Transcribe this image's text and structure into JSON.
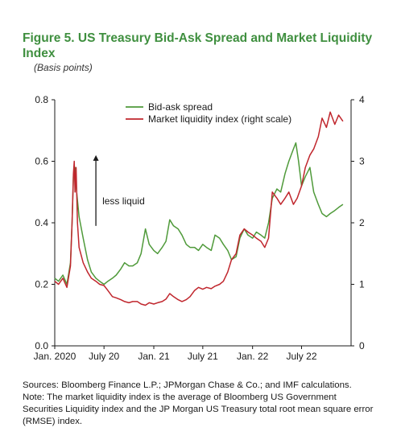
{
  "chart_data": {
    "type": "line",
    "title": "Figure 5. US Treasury Bid-Ask Spread and Market Liquidity Index",
    "subtitle": "(Basis points)",
    "x_range": [
      "2020-01-01",
      "2022-12-31"
    ],
    "x_ticks": [
      {
        "date": "2020-01-01",
        "label": "Jan. 2020"
      },
      {
        "date": "2020-07-01",
        "label": "July 20"
      },
      {
        "date": "2021-01-01",
        "label": "Jan. 21"
      },
      {
        "date": "2021-07-01",
        "label": "July 21"
      },
      {
        "date": "2022-01-01",
        "label": "Jan. 22"
      },
      {
        "date": "2022-07-01",
        "label": "July 22"
      }
    ],
    "y_left": {
      "range": [
        0,
        0.8
      ],
      "ticks": [
        {
          "value": 0,
          "label": "0.0"
        },
        {
          "value": 0.2,
          "label": "0.2"
        },
        {
          "value": 0.4,
          "label": "0.4"
        },
        {
          "value": 0.6,
          "label": "0.6"
        },
        {
          "value": 0.8,
          "label": "0.8"
        }
      ]
    },
    "y_right": {
      "range": [
        0,
        4
      ],
      "ticks": [
        {
          "value": 0,
          "label": "0"
        },
        {
          "value": 1,
          "label": "1"
        },
        {
          "value": 2,
          "label": "2"
        },
        {
          "value": 3,
          "label": "3"
        },
        {
          "value": 4,
          "label": "4"
        }
      ]
    },
    "grid": false,
    "legend_position": "top-center",
    "annotation": {
      "text": "less liquid",
      "date": "2020-06-01",
      "value": 0.47
    },
    "series": [
      {
        "name": "Bid-ask spread",
        "axis": "left",
        "color": "#4f9a3a",
        "points": [
          [
            "2020-01-01",
            0.22
          ],
          [
            "2020-01-15",
            0.21
          ],
          [
            "2020-01-31",
            0.23
          ],
          [
            "2020-02-15",
            0.2
          ],
          [
            "2020-02-28",
            0.27
          ],
          [
            "2020-03-05",
            0.4
          ],
          [
            "2020-03-10",
            0.55
          ],
          [
            "2020-03-16",
            0.58
          ],
          [
            "2020-03-22",
            0.5
          ],
          [
            "2020-03-31",
            0.42
          ],
          [
            "2020-04-15",
            0.35
          ],
          [
            "2020-05-01",
            0.28
          ],
          [
            "2020-05-15",
            0.24
          ],
          [
            "2020-06-01",
            0.22
          ],
          [
            "2020-06-15",
            0.21
          ],
          [
            "2020-07-01",
            0.2
          ],
          [
            "2020-07-15",
            0.21
          ],
          [
            "2020-08-01",
            0.22
          ],
          [
            "2020-08-15",
            0.23
          ],
          [
            "2020-09-01",
            0.25
          ],
          [
            "2020-09-15",
            0.27
          ],
          [
            "2020-10-01",
            0.26
          ],
          [
            "2020-10-15",
            0.26
          ],
          [
            "2020-11-01",
            0.27
          ],
          [
            "2020-11-15",
            0.3
          ],
          [
            "2020-12-01",
            0.38
          ],
          [
            "2020-12-15",
            0.33
          ],
          [
            "2021-01-01",
            0.31
          ],
          [
            "2021-01-15",
            0.3
          ],
          [
            "2021-02-01",
            0.32
          ],
          [
            "2021-02-15",
            0.34
          ],
          [
            "2021-03-01",
            0.41
          ],
          [
            "2021-03-15",
            0.39
          ],
          [
            "2021-04-01",
            0.38
          ],
          [
            "2021-04-15",
            0.36
          ],
          [
            "2021-05-01",
            0.33
          ],
          [
            "2021-05-15",
            0.32
          ],
          [
            "2021-06-01",
            0.32
          ],
          [
            "2021-06-15",
            0.31
          ],
          [
            "2021-07-01",
            0.33
          ],
          [
            "2021-07-15",
            0.32
          ],
          [
            "2021-08-01",
            0.31
          ],
          [
            "2021-08-15",
            0.36
          ],
          [
            "2021-09-01",
            0.35
          ],
          [
            "2021-09-15",
            0.33
          ],
          [
            "2021-10-01",
            0.31
          ],
          [
            "2021-10-15",
            0.28
          ],
          [
            "2021-11-01",
            0.29
          ],
          [
            "2021-11-15",
            0.35
          ],
          [
            "2021-12-01",
            0.38
          ],
          [
            "2021-12-15",
            0.36
          ],
          [
            "2022-01-01",
            0.35
          ],
          [
            "2022-01-15",
            0.37
          ],
          [
            "2022-02-01",
            0.36
          ],
          [
            "2022-02-15",
            0.35
          ],
          [
            "2022-03-01",
            0.4
          ],
          [
            "2022-03-15",
            0.48
          ],
          [
            "2022-04-01",
            0.51
          ],
          [
            "2022-04-15",
            0.5
          ],
          [
            "2022-05-01",
            0.56
          ],
          [
            "2022-05-15",
            0.6
          ],
          [
            "2022-06-01",
            0.64
          ],
          [
            "2022-06-10",
            0.66
          ],
          [
            "2022-06-20",
            0.6
          ],
          [
            "2022-07-01",
            0.52
          ],
          [
            "2022-07-15",
            0.55
          ],
          [
            "2022-08-01",
            0.58
          ],
          [
            "2022-08-15",
            0.5
          ],
          [
            "2022-09-01",
            0.46
          ],
          [
            "2022-09-15",
            0.43
          ],
          [
            "2022-10-01",
            0.42
          ],
          [
            "2022-10-15",
            0.43
          ],
          [
            "2022-11-01",
            0.44
          ],
          [
            "2022-11-15",
            0.45
          ],
          [
            "2022-12-01",
            0.46
          ]
        ]
      },
      {
        "name": "Market liquidity index (right scale)",
        "axis": "right",
        "color": "#c0262d",
        "points": [
          [
            "2020-01-01",
            1.05
          ],
          [
            "2020-01-15",
            1.0
          ],
          [
            "2020-01-31",
            1.1
          ],
          [
            "2020-02-15",
            0.95
          ],
          [
            "2020-02-28",
            1.3
          ],
          [
            "2020-03-05",
            2.0
          ],
          [
            "2020-03-10",
            2.8
          ],
          [
            "2020-03-13",
            3.0
          ],
          [
            "2020-03-16",
            2.5
          ],
          [
            "2020-03-20",
            2.9
          ],
          [
            "2020-03-25",
            2.0
          ],
          [
            "2020-03-31",
            1.6
          ],
          [
            "2020-04-15",
            1.35
          ],
          [
            "2020-05-01",
            1.2
          ],
          [
            "2020-05-15",
            1.1
          ],
          [
            "2020-06-01",
            1.05
          ],
          [
            "2020-06-15",
            1.0
          ],
          [
            "2020-07-01",
            0.98
          ],
          [
            "2020-07-15",
            0.9
          ],
          [
            "2020-08-01",
            0.8
          ],
          [
            "2020-08-15",
            0.78
          ],
          [
            "2020-09-01",
            0.75
          ],
          [
            "2020-09-15",
            0.72
          ],
          [
            "2020-10-01",
            0.7
          ],
          [
            "2020-10-15",
            0.72
          ],
          [
            "2020-11-01",
            0.72
          ],
          [
            "2020-11-15",
            0.68
          ],
          [
            "2020-12-01",
            0.66
          ],
          [
            "2020-12-15",
            0.7
          ],
          [
            "2021-01-01",
            0.68
          ],
          [
            "2021-01-15",
            0.7
          ],
          [
            "2021-02-01",
            0.72
          ],
          [
            "2021-02-15",
            0.76
          ],
          [
            "2021-03-01",
            0.85
          ],
          [
            "2021-03-15",
            0.8
          ],
          [
            "2021-04-01",
            0.75
          ],
          [
            "2021-04-15",
            0.72
          ],
          [
            "2021-05-01",
            0.75
          ],
          [
            "2021-05-15",
            0.8
          ],
          [
            "2021-06-01",
            0.9
          ],
          [
            "2021-06-15",
            0.95
          ],
          [
            "2021-07-01",
            0.92
          ],
          [
            "2021-07-15",
            0.95
          ],
          [
            "2021-08-01",
            0.93
          ],
          [
            "2021-08-15",
            0.97
          ],
          [
            "2021-09-01",
            1.0
          ],
          [
            "2021-09-15",
            1.05
          ],
          [
            "2021-10-01",
            1.2
          ],
          [
            "2021-10-15",
            1.4
          ],
          [
            "2021-11-01",
            1.5
          ],
          [
            "2021-11-15",
            1.8
          ],
          [
            "2021-12-01",
            1.9
          ],
          [
            "2021-12-15",
            1.85
          ],
          [
            "2022-01-01",
            1.8
          ],
          [
            "2022-01-15",
            1.75
          ],
          [
            "2022-02-01",
            1.7
          ],
          [
            "2022-02-15",
            1.6
          ],
          [
            "2022-03-01",
            1.75
          ],
          [
            "2022-03-15",
            2.5
          ],
          [
            "2022-04-01",
            2.4
          ],
          [
            "2022-04-15",
            2.3
          ],
          [
            "2022-05-01",
            2.4
          ],
          [
            "2022-05-15",
            2.5
          ],
          [
            "2022-06-01",
            2.3
          ],
          [
            "2022-06-15",
            2.4
          ],
          [
            "2022-07-01",
            2.6
          ],
          [
            "2022-07-15",
            2.9
          ],
          [
            "2022-08-01",
            3.1
          ],
          [
            "2022-08-15",
            3.2
          ],
          [
            "2022-09-01",
            3.4
          ],
          [
            "2022-09-15",
            3.7
          ],
          [
            "2022-10-01",
            3.55
          ],
          [
            "2022-10-15",
            3.8
          ],
          [
            "2022-11-01",
            3.6
          ],
          [
            "2022-11-15",
            3.75
          ],
          [
            "2022-12-01",
            3.65
          ]
        ]
      }
    ]
  },
  "notes": {
    "sources": "Sources: Bloomberg Finance L.P.; JPMorgan Chase & Co.; and IMF calculations.",
    "note": "Note: The market liquidity index is the average of Bloomberg US Government Securities Liquidity index and the JP Morgan US Treasury total root mean square error (RMSE) index."
  }
}
